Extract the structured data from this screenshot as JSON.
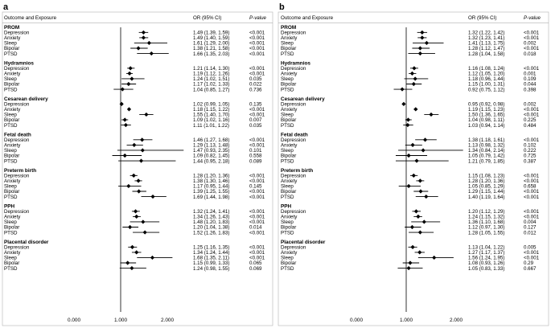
{
  "chart_data": [
    {
      "type": "forest",
      "panel_label": "a",
      "header": {
        "col1": "Outcome and Exposure",
        "col2": "OR (95% CI)",
        "col3": "P-value"
      },
      "xticks": [
        "0.000",
        "1.000",
        "2.000"
      ],
      "xlim": [
        0,
        2.6
      ],
      "reference_line": 1,
      "groups": [
        {
          "name": "PROM",
          "rows": [
            {
              "label": "Depression",
              "or": 1.49,
              "lo": 1.39,
              "hi": 1.59,
              "ci_text": "1.49 (1.39, 1.59)",
              "p": "<0.001"
            },
            {
              "label": "Anxiety",
              "or": 1.49,
              "lo": 1.4,
              "hi": 1.59,
              "ci_text": "1.49 (1.40, 1.59)",
              "p": "<0.001"
            },
            {
              "label": "Sleep",
              "or": 1.61,
              "lo": 1.29,
              "hi": 2.0,
              "ci_text": "1.61 (1.29, 2.00)",
              "p": "<0.001"
            },
            {
              "label": "Bipolar",
              "or": 1.38,
              "lo": 1.21,
              "hi": 1.58,
              "ci_text": "1.38 (1.21, 1.58)",
              "p": "<0.001"
            },
            {
              "label": "PTSD",
              "or": 1.66,
              "lo": 1.35,
              "hi": 2.03,
              "ci_text": "1.66 (1.35, 2.03)",
              "p": "<0.001"
            }
          ]
        },
        {
          "name": "Hydramnios",
          "rows": [
            {
              "label": "Depression",
              "or": 1.21,
              "lo": 1.14,
              "hi": 1.3,
              "ci_text": "1.21 (1.14, 1.30)",
              "p": "<0.001"
            },
            {
              "label": "Anxiety",
              "or": 1.19,
              "lo": 1.12,
              "hi": 1.26,
              "ci_text": "1.19 (1.12, 1.26)",
              "p": "<0.001"
            },
            {
              "label": "Sleep",
              "or": 1.24,
              "lo": 1.02,
              "hi": 1.51,
              "ci_text": "1.24 (1.02, 1.51)",
              "p": "0.035"
            },
            {
              "label": "Bipolar",
              "or": 1.17,
              "lo": 1.02,
              "hi": 1.33,
              "ci_text": "1.17 (1.02, 1.33)",
              "p": "0.022"
            },
            {
              "label": "PTSD",
              "or": 1.04,
              "lo": 0.85,
              "hi": 1.27,
              "ci_text": "1.04 (0.85, 1.27)",
              "p": "0.736"
            }
          ]
        },
        {
          "name": "Cesarean delivery",
          "rows": [
            {
              "label": "Depression",
              "or": 1.02,
              "lo": 0.99,
              "hi": 1.05,
              "ci_text": "1.02 (0.99, 1.05)",
              "p": "0.135"
            },
            {
              "label": "Anxiety",
              "or": 1.18,
              "lo": 1.15,
              "hi": 1.22,
              "ci_text": "1.18 (1.15, 1.22)",
              "p": "<0.001"
            },
            {
              "label": "Sleep",
              "or": 1.55,
              "lo": 1.4,
              "hi": 1.7,
              "ci_text": "1.55 (1.40, 1.70)",
              "p": "<0.001"
            },
            {
              "label": "Bipolar",
              "or": 1.09,
              "lo": 1.02,
              "hi": 1.16,
              "ci_text": "1.09 (1.02, 1.16)",
              "p": "0.007"
            },
            {
              "label": "PTSD",
              "or": 1.11,
              "lo": 1.01,
              "hi": 1.22,
              "ci_text": "1.11 (1.01, 1.22)",
              "p": "0.035"
            }
          ]
        },
        {
          "name": "Fetal death",
          "rows": [
            {
              "label": "Depression",
              "or": 1.46,
              "lo": 1.27,
              "hi": 1.68,
              "ci_text": "1.46 (1.27, 1.68)",
              "p": "<0.001"
            },
            {
              "label": "Anxiety",
              "or": 1.29,
              "lo": 1.13,
              "hi": 1.48,
              "ci_text": "1.29 (1.13, 1.48)",
              "p": "<0.001"
            },
            {
              "label": "Sleep",
              "or": 1.47,
              "lo": 0.93,
              "hi": 2.35,
              "ci_text": "1.47 (0.93, 2.35)",
              "p": "0.101"
            },
            {
              "label": "Bipolar",
              "or": 1.09,
              "lo": 0.82,
              "hi": 1.45,
              "ci_text": "1.09 (0.82, 1.45)",
              "p": "0.558"
            },
            {
              "label": "PTSD",
              "or": 1.44,
              "lo": 0.95,
              "hi": 2.18,
              "ci_text": "1.44 (0.95, 2.18)",
              "p": "0.089"
            }
          ]
        },
        {
          "name": "Preterm birth",
          "rows": [
            {
              "label": "Depression",
              "or": 1.28,
              "lo": 1.2,
              "hi": 1.36,
              "ci_text": "1.28 (1.20, 1.36)",
              "p": "<0.001"
            },
            {
              "label": "Anxiety",
              "or": 1.38,
              "lo": 1.3,
              "hi": 1.46,
              "ci_text": "1.38 (1.30, 1.46)",
              "p": "<0.001"
            },
            {
              "label": "Sleep",
              "or": 1.17,
              "lo": 0.95,
              "hi": 1.44,
              "ci_text": "1.17 (0.95, 1.44)",
              "p": "0.145"
            },
            {
              "label": "Bipolar",
              "or": 1.39,
              "lo": 1.25,
              "hi": 1.55,
              "ci_text": "1.39 (1.25, 1.55)",
              "p": "<0.001"
            },
            {
              "label": "PTSD",
              "or": 1.69,
              "lo": 1.44,
              "hi": 1.98,
              "ci_text": "1.69 (1.44, 1.98)",
              "p": "<0.001"
            }
          ]
        },
        {
          "name": "PPH",
          "rows": [
            {
              "label": "Depression",
              "or": 1.32,
              "lo": 1.24,
              "hi": 1.41,
              "ci_text": "1.32 (1.24, 1.41)",
              "p": "<0.001"
            },
            {
              "label": "Anxiety",
              "or": 1.34,
              "lo": 1.26,
              "hi": 1.43,
              "ci_text": "1.34 (1.26, 1.43)",
              "p": "<0.001"
            },
            {
              "label": "Sleep",
              "or": 1.48,
              "lo": 1.2,
              "hi": 1.83,
              "ci_text": "1.48 (1.20, 1.83)",
              "p": "<0.001"
            },
            {
              "label": "Bipolar",
              "or": 1.2,
              "lo": 1.04,
              "hi": 1.38,
              "ci_text": "1.20 (1.04, 1.38)",
              "p": "0.014"
            },
            {
              "label": "PTSD",
              "or": 1.52,
              "lo": 1.26,
              "hi": 1.83,
              "ci_text": "1.52 (1.26, 1.83)",
              "p": "<0.001"
            }
          ]
        },
        {
          "name": "Placental disorder",
          "rows": [
            {
              "label": "Depression",
              "or": 1.25,
              "lo": 1.16,
              "hi": 1.35,
              "ci_text": "1.25 (1.16, 1.35)",
              "p": "<0.001"
            },
            {
              "label": "Anxiety",
              "or": 1.34,
              "lo": 1.24,
              "hi": 1.44,
              "ci_text": "1.34 (1.24, 1.44)",
              "p": "<0.001"
            },
            {
              "label": "Sleep",
              "or": 1.68,
              "lo": 1.35,
              "hi": 2.11,
              "ci_text": "1.68 (1.35, 2.11)",
              "p": "<0.001"
            },
            {
              "label": "Bipolar",
              "or": 1.15,
              "lo": 0.99,
              "hi": 1.33,
              "ci_text": "1.15 (0.99, 1.33)",
              "p": "0.065"
            },
            {
              "label": "PTSD",
              "or": 1.24,
              "lo": 0.98,
              "hi": 1.55,
              "ci_text": "1.24 (0.98, 1.55)",
              "p": "0.069"
            }
          ]
        }
      ]
    },
    {
      "type": "forest",
      "panel_label": "b",
      "header": {
        "col1": "Outcome and Exposure",
        "col2": "OR (95% CI)",
        "col3": "P-value"
      },
      "xticks": [
        "0.000",
        "1.000",
        "2.000"
      ],
      "xlim": [
        0,
        2.6
      ],
      "reference_line": 1,
      "groups": [
        {
          "name": "PROM",
          "rows": [
            {
              "label": "Depression",
              "or": 1.32,
              "lo": 1.22,
              "hi": 1.42,
              "ci_text": "1.32 (1.22, 1.42)",
              "p": "<0.001"
            },
            {
              "label": "Anxiety",
              "or": 1.32,
              "lo": 1.23,
              "hi": 1.41,
              "ci_text": "1.32 (1.23, 1.41)",
              "p": "<0.001"
            },
            {
              "label": "Sleep",
              "or": 1.41,
              "lo": 1.13,
              "hi": 1.75,
              "ci_text": "1.41 (1.13, 1.75)",
              "p": "0.002"
            },
            {
              "label": "Bipolar",
              "or": 1.28,
              "lo": 1.12,
              "hi": 1.47,
              "ci_text": "1.28 (1.12, 1.47)",
              "p": "<0.001"
            },
            {
              "label": "PTSD",
              "or": 1.28,
              "lo": 1.04,
              "hi": 1.58,
              "ci_text": "1.28 (1.04, 1.58)",
              "p": "0.018"
            }
          ]
        },
        {
          "name": "Hydramnios",
          "rows": [
            {
              "label": "Depression",
              "or": 1.16,
              "lo": 1.08,
              "hi": 1.24,
              "ci_text": "1.16 (1.08, 1.24)",
              "p": "<0.001"
            },
            {
              "label": "Anxiety",
              "or": 1.12,
              "lo": 1.05,
              "hi": 1.2,
              "ci_text": "1.12 (1.05, 1.20)",
              "p": "0.001"
            },
            {
              "label": "Sleep",
              "or": 1.18,
              "lo": 0.96,
              "hi": 1.44,
              "ci_text": "1.18 (0.96, 1.44)",
              "p": "0.109"
            },
            {
              "label": "Bipolar",
              "or": 1.15,
              "lo": 1.0,
              "hi": 1.31,
              "ci_text": "1.15 (1.00, 1.31)",
              "p": "0.044"
            },
            {
              "label": "PTSD",
              "or": 0.92,
              "lo": 0.75,
              "hi": 1.12,
              "ci_text": "0.92 (0.75, 1.12)",
              "p": "0.398"
            }
          ]
        },
        {
          "name": "Cesarean delivery",
          "rows": [
            {
              "label": "Depression",
              "or": 0.95,
              "lo": 0.92,
              "hi": 0.98,
              "ci_text": "0.95 (0.92, 0.98)",
              "p": "0.002"
            },
            {
              "label": "Anxiety",
              "or": 1.19,
              "lo": 1.15,
              "hi": 1.23,
              "ci_text": "1.19 (1.15, 1.23)",
              "p": "<0.001"
            },
            {
              "label": "Sleep",
              "or": 1.5,
              "lo": 1.36,
              "hi": 1.65,
              "ci_text": "1.50 (1.36, 1.65)",
              "p": "<0.001"
            },
            {
              "label": "Bipolar",
              "or": 1.04,
              "lo": 0.98,
              "hi": 1.11,
              "ci_text": "1.04 (0.98, 1.11)",
              "p": "0.225"
            },
            {
              "label": "PTSD",
              "or": 1.03,
              "lo": 0.94,
              "hi": 1.14,
              "ci_text": "1.03 (0.94, 1.14)",
              "p": "0.484"
            }
          ]
        },
        {
          "name": "Fetal death",
          "rows": [
            {
              "label": "Depression",
              "or": 1.38,
              "lo": 1.18,
              "hi": 1.61,
              "ci_text": "1.38 (1.18, 1.61)",
              "p": "<0.001"
            },
            {
              "label": "Anxiety",
              "or": 1.13,
              "lo": 0.98,
              "hi": 1.32,
              "ci_text": "1.13 (0.98, 1.32)",
              "p": "0.102"
            },
            {
              "label": "Sleep",
              "or": 1.34,
              "lo": 0.84,
              "hi": 2.14,
              "ci_text": "1.34 (0.84, 2.14)",
              "p": "0.222"
            },
            {
              "label": "Bipolar",
              "or": 1.05,
              "lo": 0.79,
              "hi": 1.42,
              "ci_text": "1.05 (0.79, 1.42)",
              "p": "0.725"
            },
            {
              "label": "PTSD",
              "or": 1.21,
              "lo": 0.79,
              "hi": 1.85,
              "ci_text": "1.21 (0.79, 1.85)",
              "p": "0.387"
            }
          ]
        },
        {
          "name": "Preterm birth",
          "rows": [
            {
              "label": "Depression",
              "or": 1.15,
              "lo": 1.08,
              "hi": 1.23,
              "ci_text": "1.15 (1.08, 1.23)",
              "p": "<0.001"
            },
            {
              "label": "Anxiety",
              "or": 1.28,
              "lo": 1.2,
              "hi": 1.36,
              "ci_text": "1.28 (1.20, 1.36)",
              "p": "<0.001"
            },
            {
              "label": "Sleep",
              "or": 1.05,
              "lo": 0.85,
              "hi": 1.29,
              "ci_text": "1.05 (0.85, 1.29)",
              "p": "0.658"
            },
            {
              "label": "Bipolar",
              "or": 1.29,
              "lo": 1.15,
              "hi": 1.44,
              "ci_text": "1.29 (1.15, 1.44)",
              "p": "<0.001"
            },
            {
              "label": "PTSD",
              "or": 1.4,
              "lo": 1.19,
              "hi": 1.64,
              "ci_text": "1.40 (1.19, 1.64)",
              "p": "<0.001"
            }
          ]
        },
        {
          "name": "PPH",
          "rows": [
            {
              "label": "Depression",
              "or": 1.2,
              "lo": 1.12,
              "hi": 1.29,
              "ci_text": "1.20 (1.12, 1.29)",
              "p": "<0.001"
            },
            {
              "label": "Anxiety",
              "or": 1.24,
              "lo": 1.15,
              "hi": 1.32,
              "ci_text": "1.24 (1.15, 1.32)",
              "p": "<0.001"
            },
            {
              "label": "Sleep",
              "or": 1.36,
              "lo": 1.1,
              "hi": 1.68,
              "ci_text": "1.36 (1.10, 1.68)",
              "p": "0.004"
            },
            {
              "label": "Bipolar",
              "or": 1.12,
              "lo": 0.97,
              "hi": 1.3,
              "ci_text": "1.12 (0.97, 1.30)",
              "p": "0.127"
            },
            {
              "label": "PTSD",
              "or": 1.28,
              "lo": 1.05,
              "hi": 1.55,
              "ci_text": "1.28 (1.05, 1.55)",
              "p": "0.012"
            }
          ]
        },
        {
          "name": "Placental disorder",
          "rows": [
            {
              "label": "Depression",
              "or": 1.13,
              "lo": 1.04,
              "hi": 1.22,
              "ci_text": "1.13 (1.04, 1.22)",
              "p": "0.005"
            },
            {
              "label": "Anxiety",
              "or": 1.27,
              "lo": 1.17,
              "hi": 1.37,
              "ci_text": "1.27 (1.17, 1.37)",
              "p": "<0.001"
            },
            {
              "label": "Sleep",
              "or": 1.56,
              "lo": 1.24,
              "hi": 1.95,
              "ci_text": "1.56 (1.24, 1.95)",
              "p": "<0.001"
            },
            {
              "label": "Bipolar",
              "or": 1.08,
              "lo": 0.93,
              "hi": 1.26,
              "ci_text": "1.08 (0.93, 1.26)",
              "p": "0.29"
            },
            {
              "label": "PTSD",
              "or": 1.05,
              "lo": 0.83,
              "hi": 1.33,
              "ci_text": "1.05 (0.83, 1.33)",
              "p": "0.667"
            }
          ]
        }
      ]
    }
  ]
}
